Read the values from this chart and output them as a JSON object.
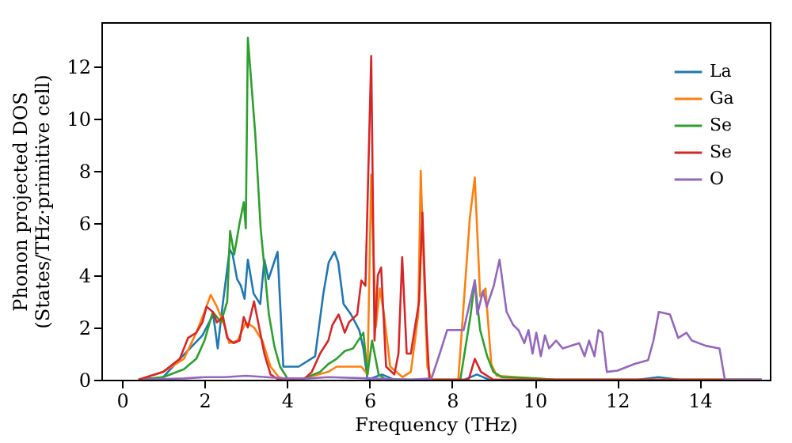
{
  "chart_data": {
    "type": "line",
    "xlabel": "Frequency (THz)",
    "ylabel": "Phonon projected DOS\n(States/THz·primitive cell)",
    "xlim": [
      -0.5,
      15.7
    ],
    "ylim": [
      0,
      13.7
    ],
    "xticks": [
      0,
      2,
      4,
      6,
      8,
      10,
      12,
      14
    ],
    "yticks": [
      0,
      2,
      4,
      6,
      8,
      10,
      12
    ],
    "legend": "top right",
    "grid": false,
    "series": [
      {
        "name": "La",
        "color": "#1f77b4",
        "x": [
          0.4,
          1.0,
          1.48,
          1.95,
          2.21,
          2.32,
          2.41,
          2.61,
          2.68,
          2.79,
          2.88,
          2.97,
          3.05,
          3.19,
          3.35,
          3.45,
          3.55,
          3.77,
          3.91,
          4.01,
          4.28,
          4.68,
          4.88,
          5.01,
          5.15,
          5.24,
          5.37,
          5.55,
          5.75,
          5.85,
          5.95,
          6.3,
          6.6,
          8.3,
          8.6,
          8.9,
          12.5,
          13.0,
          13.5,
          15.5
        ],
        "values": [
          0,
          0.1,
          0.93,
          1.7,
          2.5,
          1.2,
          2.5,
          5.0,
          4.8,
          3.85,
          3.6,
          3.1,
          4.6,
          3.3,
          2.9,
          4.6,
          3.85,
          4.9,
          0.5,
          0.5,
          0.5,
          0.9,
          3.3,
          4.5,
          4.9,
          4.5,
          2.9,
          2.5,
          1.9,
          1.2,
          0,
          0.2,
          0,
          0,
          0.2,
          0,
          0,
          0.1,
          0,
          0
        ]
      },
      {
        "name": "Ga",
        "color": "#ff7f0e",
        "x": [
          0.4,
          1.0,
          1.5,
          1.8,
          2.0,
          2.15,
          2.3,
          2.5,
          2.6,
          2.8,
          3.0,
          3.2,
          3.4,
          3.6,
          3.8,
          4.0,
          4.4,
          5.0,
          5.2,
          5.5,
          5.8,
          5.95,
          6.04,
          6.15,
          6.25,
          6.35,
          6.5,
          6.8,
          7.0,
          7.1,
          7.18,
          7.24,
          7.32,
          7.4,
          7.5,
          8.15,
          8.43,
          8.55,
          8.68,
          8.81,
          8.95,
          9.08,
          10.0,
          10.5,
          15.5
        ],
        "values": [
          0,
          0.3,
          0.8,
          1.8,
          2.6,
          3.25,
          2.8,
          2.0,
          1.4,
          1.5,
          2.2,
          2.0,
          1.5,
          0.5,
          0.1,
          0,
          0.05,
          0.3,
          0.5,
          0.5,
          0.5,
          0.2,
          7.86,
          2.0,
          3.5,
          2.5,
          0.5,
          0.1,
          0.3,
          1.5,
          2.5,
          8.0,
          4.0,
          0.5,
          0,
          0,
          6.2,
          7.75,
          3.2,
          3.5,
          0.6,
          0.15,
          0.05,
          0,
          0
        ]
      },
      {
        "name": "Se",
        "color": "#2ca02c",
        "x": [
          0.5,
          1.0,
          1.5,
          1.8,
          2.0,
          2.2,
          2.4,
          2.55,
          2.62,
          2.72,
          2.85,
          2.95,
          3.0,
          3.05,
          3.23,
          3.36,
          3.56,
          3.69,
          3.83,
          4.03,
          4.4,
          4.8,
          5.0,
          5.2,
          5.4,
          5.6,
          5.85,
          5.95,
          6.06,
          6.22,
          6.4,
          8.2,
          8.45,
          8.55,
          8.68,
          8.85,
          9.0,
          9.2,
          10.0,
          10.5,
          15.5
        ],
        "values": [
          0,
          0.1,
          0.4,
          0.8,
          1.5,
          2.6,
          2.2,
          3.0,
          5.7,
          4.8,
          6.0,
          6.8,
          5.8,
          13.1,
          9.4,
          5.8,
          2.5,
          1.3,
          0.5,
          0,
          0.05,
          0.3,
          0.6,
          0.8,
          1.1,
          1.2,
          1.8,
          0.2,
          1.5,
          0.2,
          0,
          0,
          2.5,
          3.8,
          1.9,
          0.9,
          0.3,
          0.1,
          0.05,
          0,
          0
        ]
      },
      {
        "name": "Se",
        "color": "#d62728",
        "x": [
          0.4,
          1.0,
          1.4,
          1.6,
          1.8,
          1.95,
          2.05,
          2.2,
          2.3,
          2.45,
          2.55,
          2.7,
          2.85,
          2.95,
          3.05,
          3.2,
          3.3,
          3.45,
          3.6,
          3.8,
          4.4,
          4.6,
          4.8,
          5.0,
          5.1,
          5.25,
          5.4,
          5.5,
          5.7,
          5.8,
          5.9,
          6.04,
          6.12,
          6.2,
          6.28,
          6.4,
          6.6,
          6.7,
          6.79,
          6.9,
          7.0,
          7.1,
          7.2,
          7.28,
          7.38,
          7.45,
          8.4,
          8.55,
          8.7,
          9.0,
          15.5
        ],
        "values": [
          0,
          0.3,
          0.8,
          1.6,
          1.8,
          2.2,
          2.8,
          2.6,
          2.2,
          2.4,
          1.6,
          1.4,
          1.5,
          2.4,
          2.0,
          3.0,
          2.2,
          1.0,
          0.2,
          0,
          0,
          0.3,
          1.0,
          1.5,
          2.1,
          2.5,
          1.8,
          2.2,
          2.5,
          3.8,
          3.6,
          12.4,
          1.5,
          4.0,
          4.3,
          0.5,
          0.2,
          1.0,
          4.7,
          1.0,
          1.0,
          2.0,
          3.0,
          6.4,
          2.0,
          0,
          0,
          0.8,
          0.3,
          0,
          0
        ]
      },
      {
        "name": "O",
        "color": "#9467bd",
        "x": [
          0.5,
          1.5,
          2.0,
          2.5,
          3.0,
          3.5,
          4.0,
          4.5,
          5.0,
          6.0,
          7.0,
          7.5,
          7.7,
          7.88,
          8.15,
          8.28,
          8.35,
          8.55,
          8.61,
          8.75,
          8.84,
          9.01,
          9.15,
          9.21,
          9.32,
          9.48,
          9.61,
          9.75,
          9.85,
          9.95,
          10.04,
          10.15,
          10.25,
          10.35,
          10.52,
          10.68,
          11.08,
          11.21,
          11.32,
          11.45,
          11.55,
          11.64,
          11.75,
          12.01,
          12.41,
          12.75,
          12.88,
          13.01,
          13.28,
          13.48,
          13.68,
          13.81,
          14.15,
          14.48,
          14.61,
          15.5
        ],
        "values": [
          0,
          0.05,
          0.1,
          0.1,
          0.15,
          0.1,
          0.05,
          0.05,
          0.1,
          0.05,
          0,
          0.05,
          1.0,
          1.9,
          1.9,
          1.9,
          2.4,
          3.8,
          2.5,
          3.4,
          2.8,
          3.6,
          4.6,
          3.9,
          2.6,
          2.1,
          1.9,
          1.4,
          1.9,
          1.0,
          1.8,
          0.9,
          1.7,
          1.2,
          1.5,
          1.2,
          1.4,
          0.9,
          1.5,
          0.9,
          1.9,
          1.8,
          0.3,
          0.35,
          0.6,
          0.75,
          1.5,
          2.6,
          2.5,
          1.6,
          1.8,
          1.5,
          1.3,
          1.2,
          0,
          0
        ]
      }
    ]
  }
}
